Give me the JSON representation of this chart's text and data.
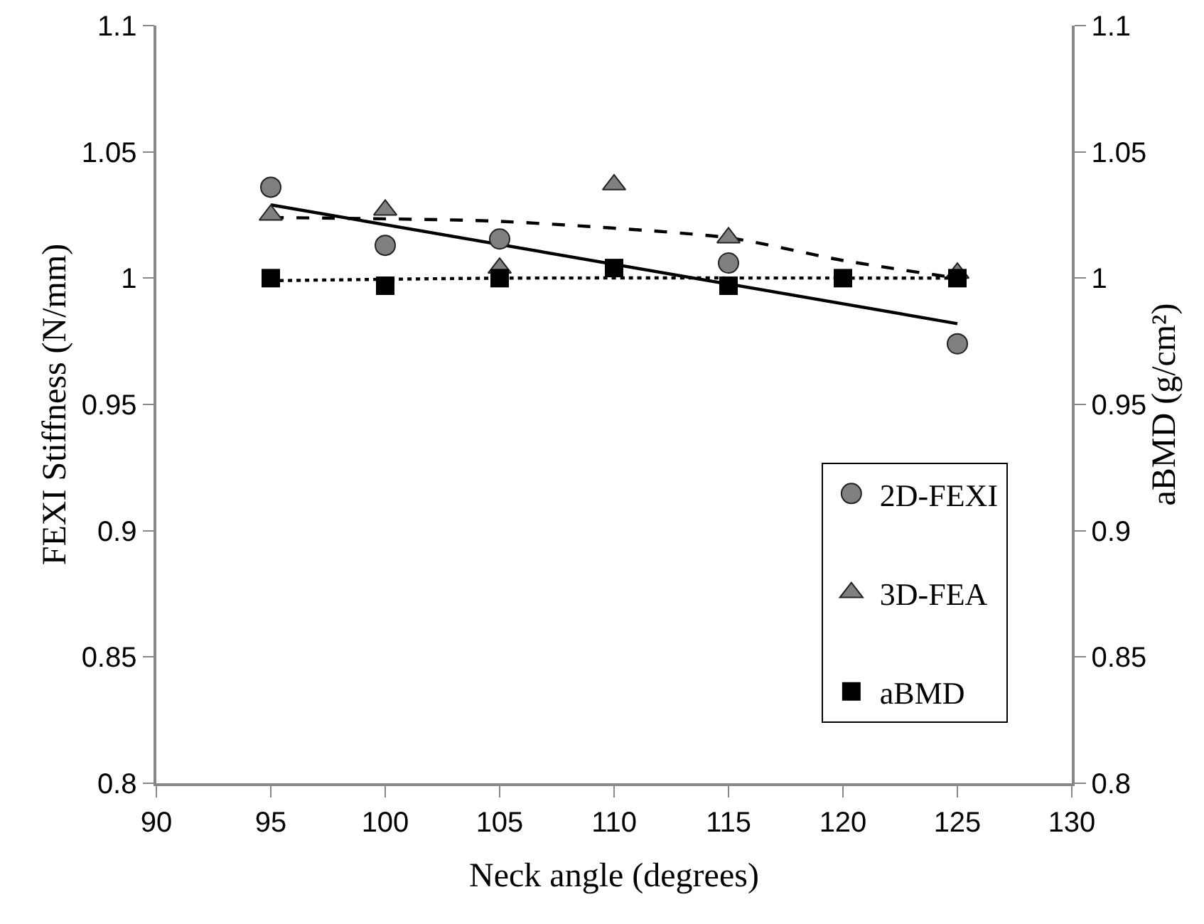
{
  "chart_data": {
    "type": "scatter",
    "xlabel": "Neck angle (degrees)",
    "ylabel": "FEXI Stiffness (N/mm)",
    "y2label": "aBMD (g/cm²)",
    "x": [
      95,
      100,
      105,
      110,
      115,
      120,
      125
    ],
    "series": [
      {
        "name": "2D-FEXI",
        "color": "#808080",
        "marker": "circle",
        "values": [
          1.036,
          1.013,
          1.0155,
          null,
          1.006,
          null,
          0.974
        ]
      },
      {
        "name": "3D-FEA",
        "color": "#808080",
        "marker": "triangle",
        "values": [
          1.025,
          1.027,
          1.004,
          1.037,
          1.016,
          null,
          1.002
        ]
      },
      {
        "name": "aBMD",
        "color": "#000000",
        "marker": "square",
        "axis": "y2",
        "values": [
          1.0,
          0.997,
          1.0,
          1.004,
          0.997,
          1.0,
          1.0
        ]
      },
      {
        "type": "line",
        "color": "#000000",
        "line_style": "solid",
        "marker": "none",
        "x": [
          95,
          125
        ],
        "values": [
          1.029,
          0.982
        ]
      },
      {
        "type": "line",
        "color": "#000000",
        "line_style": "dashed",
        "marker": "none",
        "x": [
          95,
          105,
          115,
          120,
          125
        ],
        "values": [
          1.024,
          1.0225,
          1.016,
          1.007,
          1.0
        ]
      },
      {
        "type": "line",
        "color": "#000000",
        "line_style": "dotted",
        "marker": "none",
        "axis": "y2",
        "x": [
          95,
          105,
          125
        ],
        "values": [
          0.999,
          1.0,
          1.0
        ]
      }
    ],
    "xlim": [
      90,
      130
    ],
    "xticks": [
      90,
      95,
      100,
      105,
      110,
      115,
      120,
      125,
      130
    ],
    "ylim": [
      0.8,
      1.1
    ],
    "yticks": [
      0.8,
      0.85,
      0.9,
      0.95,
      1,
      1.05,
      1.1
    ],
    "y2lim": [
      0.8,
      1.1
    ],
    "y2ticks": [
      0.8,
      0.85,
      0.9,
      0.95,
      1,
      1.05,
      1.1
    ],
    "grid": false,
    "legend": "bottom right"
  }
}
